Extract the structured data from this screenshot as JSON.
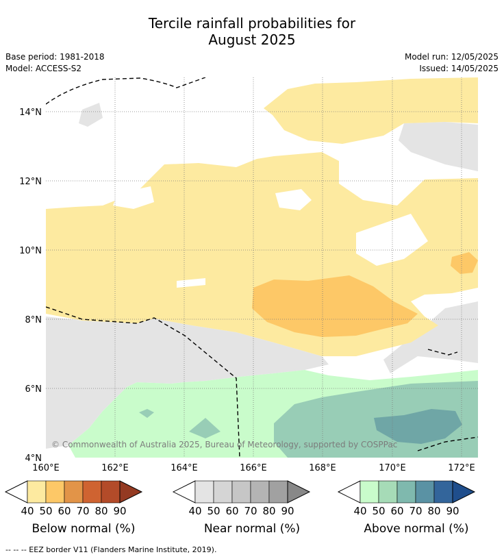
{
  "title": {
    "line1": "Tercile rainfall probabilities for",
    "line2": "August 2025"
  },
  "meta": {
    "base_period": "Base period: 1981-2018",
    "model": "Model: ACCESS-S2",
    "model_run": "Model run: 12/05/2025",
    "issued": "Issued: 14/05/2025"
  },
  "map": {
    "lat_labels": [
      "14°N",
      "12°N",
      "10°N",
      "8°N",
      "6°N",
      "4°N"
    ],
    "lon_labels": [
      "160°E",
      "162°E",
      "164°E",
      "166°E",
      "168°E",
      "170°E",
      "172°E"
    ],
    "copyright": "© Commonwealth of Australia 2025, Bureau of Meteorology, supported by COSPPac",
    "colors": {
      "below_40": "#fdeaa0",
      "below_50": "#fdc867",
      "near_40": "#e4e4e4",
      "above_40": "#c9fccb",
      "above_50": "#98cdb6",
      "above_60": "#6fa6a6"
    }
  },
  "colorbars": [
    {
      "label": "Below normal (%)",
      "ticks": [
        "40",
        "50",
        "60",
        "70",
        "80",
        "90"
      ],
      "colors": [
        "#fdeaa0",
        "#fdc867",
        "#e29448",
        "#cf6331",
        "#b34b29",
        "#943a22"
      ]
    },
    {
      "label": "Near normal (%)",
      "ticks": [
        "40",
        "50",
        "60",
        "70",
        "80",
        "90"
      ],
      "colors": [
        "#e4e4e4",
        "#d5d5d5",
        "#c6c6c6",
        "#b4b4b4",
        "#a1a1a1",
        "#888888"
      ]
    },
    {
      "label": "Above normal (%)",
      "ticks": [
        "40",
        "50",
        "60",
        "70",
        "80",
        "90"
      ],
      "colors": [
        "#c9fccb",
        "#a6dbb7",
        "#7fb9ae",
        "#5a92a4",
        "#33659b",
        "#1f4e8c"
      ]
    }
  ],
  "footnote": "--  --  -- EEZ border V11 (Flanders Marine Institute, 2019)."
}
